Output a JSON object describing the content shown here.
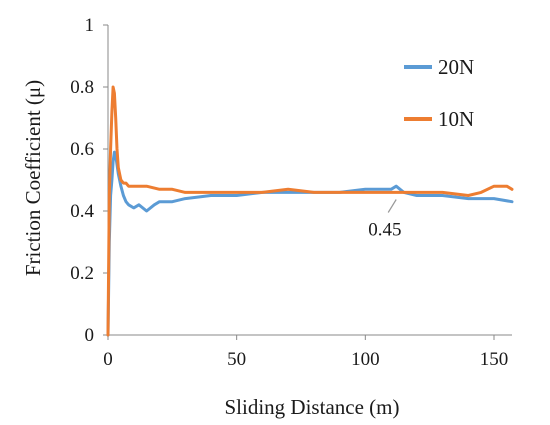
{
  "chart_data": {
    "type": "line",
    "xlabel": "Sliding Distance (m)",
    "ylabel": "Friction Coefficient (μ)",
    "xlim": [
      0,
      157
    ],
    "ylim": [
      0,
      1
    ],
    "x_ticks": [
      0,
      50,
      100,
      150
    ],
    "y_ticks": [
      0,
      0.2,
      0.4,
      0.6,
      0.8,
      1
    ],
    "y_tick_labels": [
      "0",
      "0.2",
      "0.4",
      "0.6",
      "0.8",
      "1"
    ],
    "grid": false,
    "legend_position": "top-right",
    "series": [
      {
        "name": "20N",
        "color": "#5b9bd5",
        "x": [
          0,
          0.5,
          1,
          1.5,
          2,
          2.5,
          3,
          3.5,
          4,
          5,
          6,
          7,
          8,
          10,
          12,
          15,
          18,
          20,
          25,
          30,
          40,
          50,
          60,
          70,
          80,
          90,
          100,
          105,
          110,
          112,
          115,
          120,
          130,
          140,
          150,
          157
        ],
        "y": [
          0,
          0.3,
          0.45,
          0.5,
          0.56,
          0.59,
          0.58,
          0.55,
          0.52,
          0.48,
          0.45,
          0.43,
          0.42,
          0.41,
          0.42,
          0.4,
          0.42,
          0.43,
          0.43,
          0.44,
          0.45,
          0.45,
          0.46,
          0.46,
          0.46,
          0.46,
          0.47,
          0.47,
          0.47,
          0.48,
          0.46,
          0.45,
          0.45,
          0.44,
          0.44,
          0.43
        ]
      },
      {
        "name": "10N",
        "color": "#ed7d31",
        "x": [
          0,
          0.5,
          1,
          1.5,
          2,
          2.5,
          3,
          3.5,
          4,
          5,
          6,
          7,
          8,
          10,
          15,
          20,
          25,
          30,
          40,
          50,
          60,
          70,
          80,
          90,
          100,
          110,
          120,
          130,
          140,
          145,
          150,
          155,
          157
        ],
        "y": [
          0,
          0.45,
          0.6,
          0.72,
          0.8,
          0.78,
          0.7,
          0.6,
          0.54,
          0.5,
          0.49,
          0.49,
          0.48,
          0.48,
          0.48,
          0.47,
          0.47,
          0.46,
          0.46,
          0.46,
          0.46,
          0.47,
          0.46,
          0.46,
          0.46,
          0.46,
          0.46,
          0.46,
          0.45,
          0.46,
          0.48,
          0.48,
          0.47
        ]
      }
    ],
    "annotations": [
      {
        "text": "0.45",
        "x": 112,
        "y": 0.45
      }
    ]
  }
}
